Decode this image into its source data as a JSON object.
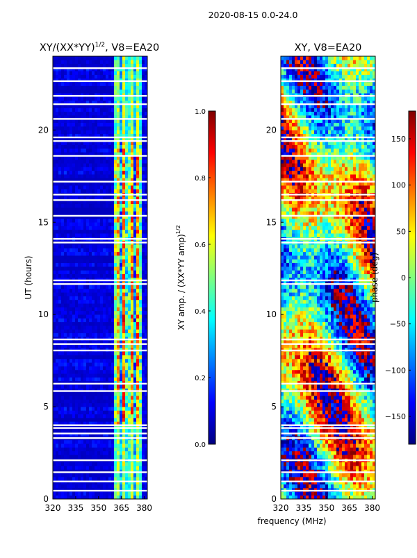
{
  "figure_title": "2020-08-15 0.0-24.0",
  "chart_data": [
    {
      "type": "heatmap",
      "title_main": "XY/(XX*YY)",
      "title_exp": "1/2",
      "title_tail": ", V8=EA20",
      "xlabel": "",
      "ylabel": "UT (hours)",
      "xlim": [
        320,
        382
      ],
      "ylim": [
        0,
        24
      ],
      "x_ticks": [
        320,
        335,
        350,
        365,
        380
      ],
      "y_ticks": [
        0,
        5,
        10,
        15,
        20
      ],
      "colorbar": {
        "label_main": "XY amp. / (XX*YY amp)",
        "label_exp": "1/2",
        "range": [
          0,
          1
        ],
        "ticks": [
          "0.0",
          "0.2",
          "0.4",
          "0.6",
          "0.8",
          "1.0"
        ],
        "tick_values": [
          0,
          0.2,
          0.4,
          0.6,
          0.8,
          1.0
        ],
        "colormap": "jet"
      }
    },
    {
      "type": "heatmap",
      "title_main": "XY, V8=EA20",
      "xlabel": "frequency (MHz)",
      "ylabel": "",
      "xlim": [
        320,
        382
      ],
      "ylim": [
        0,
        24
      ],
      "x_ticks": [
        320,
        335,
        350,
        365,
        380
      ],
      "y_ticks": [
        0,
        5,
        10,
        15,
        20
      ],
      "colorbar": {
        "label_main": "phase (deg)",
        "range": [
          -180,
          180
        ],
        "ticks": [
          "−150",
          "−100",
          "−50",
          "0",
          "50",
          "100",
          "150"
        ],
        "tick_values": [
          -150,
          -100,
          -50,
          0,
          50,
          100,
          150
        ],
        "colormap": "jet"
      }
    }
  ],
  "blank_rows_hours": [
    0.45,
    0.95,
    1.45,
    2.1,
    3.3,
    3.55,
    3.85,
    4.0,
    5.85,
    6.25,
    8.05,
    8.4,
    8.65,
    11.65,
    11.85,
    13.9,
    14.1,
    15.35,
    16.2,
    16.5,
    17.2,
    18.6,
    19.4,
    19.6,
    20.6,
    21.4,
    21.85,
    22.65,
    23.35
  ]
}
